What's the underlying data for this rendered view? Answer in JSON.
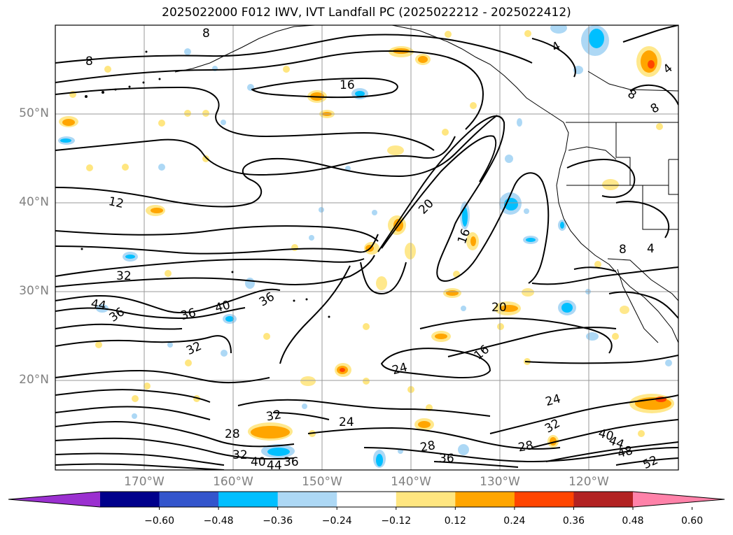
{
  "title": "2025022000 F012 IWV, IVT Landfall PC (2025022212 - 2025022412)",
  "latitude_labels": [
    "50°N",
    "40°N",
    "30°N",
    "20°N"
  ],
  "longitude_labels": [
    "170°W",
    "160°W",
    "150°W",
    "140°W",
    "130°W",
    "120°W"
  ],
  "contour_labels": [
    "8",
    "8",
    "16",
    "12",
    "20",
    "16",
    "32",
    "36",
    "40",
    "44",
    "36",
    "36",
    "32",
    "20",
    "24",
    "16",
    "24",
    "28",
    "24",
    "32",
    "28",
    "32",
    "28",
    "36",
    "40",
    "44",
    "48",
    "52",
    "32",
    "40",
    "44",
    "36",
    "4",
    "8",
    "8",
    "4",
    "8",
    "4"
  ],
  "colorbar": {
    "ticks": [
      "−0.60",
      "−0.48",
      "−0.36",
      "−0.24",
      "−0.12",
      "0.12",
      "0.24",
      "0.36",
      "0.48",
      "0.60"
    ],
    "colors": [
      "#9b30d0",
      "#00008b",
      "#3355cc",
      "#00bfff",
      "#add8f5",
      "#ffffff",
      "#ffe680",
      "#ffa500",
      "#ff4500",
      "#b22222",
      "#ff82a9"
    ],
    "extend": "both"
  },
  "colors": {
    "contour": "#000000",
    "grid": "#9a9a9a",
    "coast": "#000000",
    "axis_label": "#808080"
  }
}
